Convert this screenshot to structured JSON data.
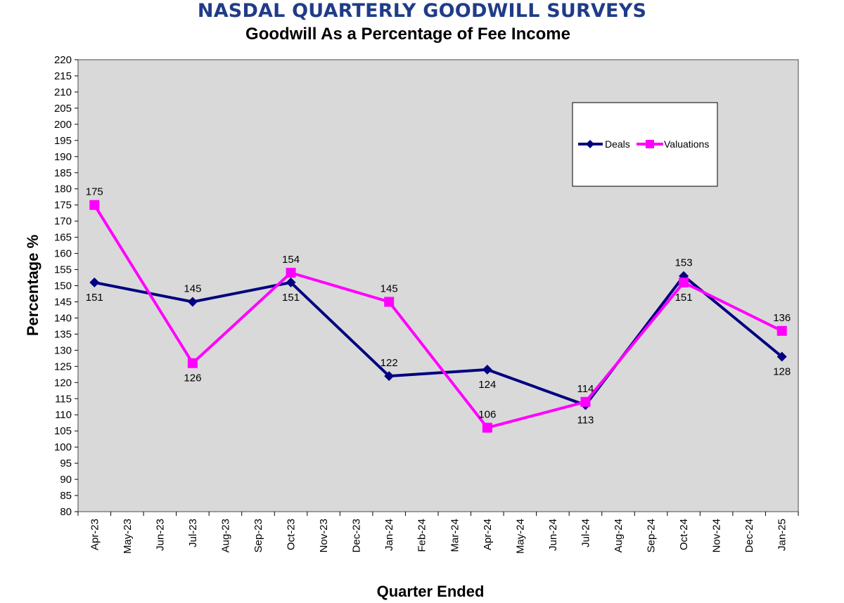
{
  "header": {
    "title": "NASDAL QUARTERLY GOODWILL SURVEYS",
    "subtitle": "Goodwill As a Percentage of Fee Income"
  },
  "colors": {
    "title": "#1f3c88",
    "plot_bg": "#d9d9d9",
    "deals": "#000080",
    "valuations": "#ff00ff"
  },
  "chart_data": {
    "type": "line",
    "title": "Goodwill As a Percentage of Fee Income",
    "xlabel": "Quarter Ended",
    "ylabel": "Percentage %",
    "ylim": [
      80,
      220
    ],
    "ystep": 5,
    "grid": false,
    "legend_position": "top-right",
    "categories": [
      "Apr-23",
      "May-23",
      "Jun-23",
      "Jul-23",
      "Aug-23",
      "Sep-23",
      "Oct-23",
      "Nov-23",
      "Dec-23",
      "Jan-24",
      "Feb-24",
      "Mar-24",
      "Apr-24",
      "May-24",
      "Jun-24",
      "Jul-24",
      "Aug-24",
      "Sep-24",
      "Oct-24",
      "Nov-24",
      "Dec-24",
      "Jan-25"
    ],
    "series": [
      {
        "name": "Deals",
        "marker": "diamond",
        "points": [
          {
            "x": "Apr-23",
            "y": 151,
            "label": "151",
            "label_pos": "below"
          },
          {
            "x": "Jul-23",
            "y": 145,
            "label": "145",
            "label_pos": "above"
          },
          {
            "x": "Oct-23",
            "y": 151,
            "label": "151",
            "label_pos": "below"
          },
          {
            "x": "Jan-24",
            "y": 122,
            "label": "122",
            "label_pos": "above"
          },
          {
            "x": "Apr-24",
            "y": 124,
            "label": "124",
            "label_pos": "below"
          },
          {
            "x": "Jul-24",
            "y": 113,
            "label": "113",
            "label_pos": "below"
          },
          {
            "x": "Oct-24",
            "y": 153,
            "label": "153",
            "label_pos": "above"
          },
          {
            "x": "Jan-25",
            "y": 128,
            "label": "128",
            "label_pos": "below"
          }
        ]
      },
      {
        "name": "Valuations",
        "marker": "square",
        "points": [
          {
            "x": "Apr-23",
            "y": 175,
            "label": "175",
            "label_pos": "above"
          },
          {
            "x": "Jul-23",
            "y": 126,
            "label": "126",
            "label_pos": "below"
          },
          {
            "x": "Oct-23",
            "y": 154,
            "label": "154",
            "label_pos": "above"
          },
          {
            "x": "Jan-24",
            "y": 145,
            "label": "145",
            "label_pos": "above"
          },
          {
            "x": "Apr-24",
            "y": 106,
            "label": "106",
            "label_pos": "above"
          },
          {
            "x": "Jul-24",
            "y": 114,
            "label": "114",
            "label_pos": "above"
          },
          {
            "x": "Oct-24",
            "y": 151,
            "label": "151",
            "label_pos": "below"
          },
          {
            "x": "Jan-25",
            "y": 136,
            "label": "136",
            "label_pos": "above"
          }
        ]
      }
    ]
  }
}
